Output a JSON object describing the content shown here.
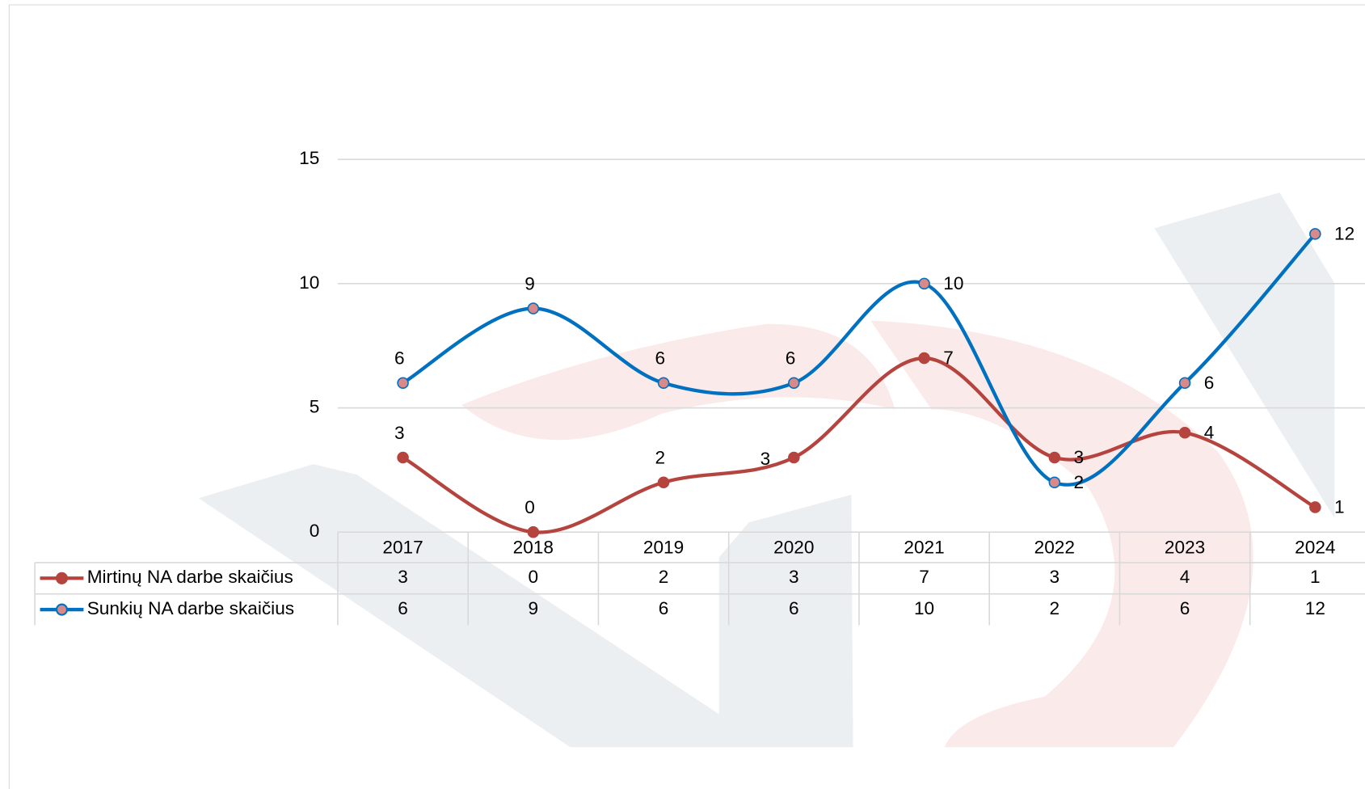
{
  "chart_data": {
    "type": "line",
    "categories": [
      "2017",
      "2018",
      "2019",
      "2020",
      "2021",
      "2022",
      "2023",
      "2024"
    ],
    "series": [
      {
        "name": "Mirtinų NA darbe skaičius",
        "color": "#b5443f",
        "values": [
          3,
          0,
          2,
          3,
          7,
          3,
          4,
          1
        ]
      },
      {
        "name": "Sunkių NA darbe skaičius",
        "color": "#0070c0",
        "values": [
          6,
          9,
          6,
          6,
          10,
          2,
          6,
          12
        ]
      }
    ],
    "ylim": [
      0,
      15
    ],
    "yticks": [
      0,
      5,
      10,
      15
    ],
    "grid": true,
    "data_table": true
  }
}
